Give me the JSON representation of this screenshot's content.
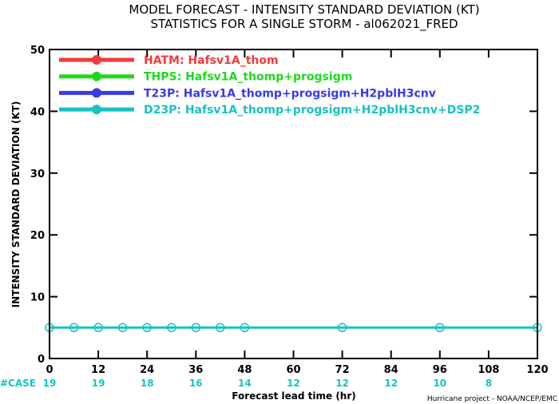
{
  "header": {
    "line1": "MODEL FORECAST - INTENSITY STANDARD DEVIATION (KT)",
    "line2": "STATISTICS FOR A SINGLE STORM - al062021_FRED"
  },
  "credit": "Hurricane project - NOAA/NCEP/EMC",
  "cases": {
    "label": "#CASE",
    "values": [
      "19",
      "19",
      "18",
      "16",
      "14",
      "12",
      "12",
      "12",
      "10",
      "8"
    ],
    "color": "#17c2c2"
  },
  "chart_data": {
    "type": "line",
    "xlabel": "Forecast lead time (hr)",
    "ylabel": "INTENSITY STANDARD DEVIATION (KT)",
    "xlim": [
      0,
      120
    ],
    "ylim": [
      0,
      50
    ],
    "xticks": [
      0,
      12,
      24,
      36,
      48,
      60,
      72,
      84,
      96,
      108,
      120
    ],
    "yticks": [
      0,
      10,
      20,
      30,
      40,
      50
    ],
    "grid": false,
    "legend_position": "top-left",
    "series": [
      {
        "name": "HATM:  Hafsv1A_thom",
        "color": "#f23a3a",
        "x": [],
        "y": []
      },
      {
        "name": "THPS:  Hafsv1A_thomp+progsigm",
        "color": "#1ed81e",
        "x": [],
        "y": []
      },
      {
        "name": "T23P:  Hafsv1A_thomp+progsigm+H2pblH3cnv",
        "color": "#3a3ae8",
        "x": [],
        "y": []
      },
      {
        "name": "D23P:  Hafsv1A_thomp+progsigm+H2pblH3cnv+DSP2",
        "color": "#17c2c2",
        "x": [
          0,
          6,
          12,
          18,
          24,
          30,
          36,
          42,
          48,
          72,
          96,
          120
        ],
        "y": [
          5,
          5,
          5,
          5,
          5,
          5,
          5,
          5,
          5,
          5,
          5,
          5
        ]
      }
    ]
  }
}
